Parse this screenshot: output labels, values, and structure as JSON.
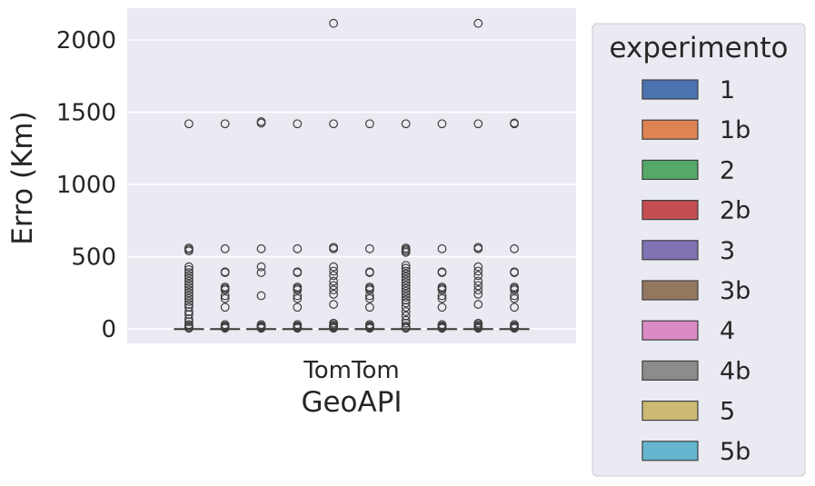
{
  "chart_data": {
    "type": "box",
    "xlabel": "GeoAPI",
    "ylabel": "Erro (Km)",
    "categories": [
      "TomTom"
    ],
    "ylim": [
      -100,
      2220
    ],
    "yticks": [
      0,
      500,
      1000,
      1500,
      2000
    ],
    "grid": true,
    "legend": {
      "title": "experimento",
      "placement": "outside-right"
    },
    "series": [
      {
        "name": "1",
        "color": "#4c72b0",
        "box": {
          "min": 0,
          "q1": 0,
          "median": 0,
          "q3": 0,
          "max": 0
        },
        "outliers": [
          1420,
          560,
          550,
          540,
          430,
          410,
          390,
          370,
          350,
          330,
          310,
          290,
          270,
          250,
          230,
          210,
          190,
          170,
          150,
          120,
          100,
          70,
          50,
          30,
          20,
          10,
          5
        ]
      },
      {
        "name": "1b",
        "color": "#dd8452",
        "box": {
          "min": 0,
          "q1": 0,
          "median": 0,
          "q3": 0,
          "max": 0
        },
        "outliers": [
          1420,
          555,
          395,
          390,
          290,
          280,
          270,
          230,
          210,
          150,
          30,
          20,
          15,
          10,
          5
        ]
      },
      {
        "name": "2",
        "color": "#55a868",
        "box": {
          "min": 0,
          "q1": 0,
          "median": 0,
          "q3": 0,
          "max": 0
        },
        "outliers": [
          1435,
          1425,
          555,
          430,
          390,
          230,
          30,
          20,
          15,
          10,
          5
        ]
      },
      {
        "name": "2b",
        "color": "#c44e52",
        "box": {
          "min": 0,
          "q1": 0,
          "median": 0,
          "q3": 0,
          "max": 0
        },
        "outliers": [
          1420,
          555,
          395,
          390,
          290,
          280,
          270,
          230,
          210,
          150,
          30,
          20,
          15,
          10,
          5
        ]
      },
      {
        "name": "3",
        "color": "#8172b3",
        "box": {
          "min": 0,
          "q1": 0,
          "median": 0,
          "q3": 0,
          "max": 0
        },
        "outliers": [
          2115,
          1420,
          565,
          555,
          430,
          400,
          370,
          330,
          300,
          270,
          240,
          170,
          40,
          30,
          20,
          15,
          10,
          5
        ]
      },
      {
        "name": "3b",
        "color": "#937860",
        "box": {
          "min": 0,
          "q1": 0,
          "median": 0,
          "q3": 0,
          "max": 0
        },
        "outliers": [
          1420,
          555,
          395,
          390,
          290,
          280,
          270,
          230,
          210,
          150,
          30,
          20,
          15,
          10,
          5
        ]
      },
      {
        "name": "4",
        "color": "#da8bc3",
        "box": {
          "min": 0,
          "q1": 0,
          "median": 0,
          "q3": 0,
          "max": 0
        },
        "outliers": [
          1420,
          560,
          550,
          540,
          530,
          440,
          420,
          400,
          380,
          360,
          340,
          320,
          300,
          280,
          260,
          240,
          220,
          200,
          180,
          150,
          120,
          90,
          60,
          40,
          20,
          10,
          5
        ]
      },
      {
        "name": "4b",
        "color": "#8c8c8c",
        "box": {
          "min": 0,
          "q1": 0,
          "median": 0,
          "q3": 0,
          "max": 0
        },
        "outliers": [
          1420,
          555,
          395,
          390,
          290,
          280,
          270,
          230,
          210,
          150,
          30,
          20,
          15,
          10,
          5
        ]
      },
      {
        "name": "5",
        "color": "#ccb974",
        "box": {
          "min": 0,
          "q1": 0,
          "median": 0,
          "q3": 0,
          "max": 0
        },
        "outliers": [
          2115,
          1420,
          565,
          555,
          430,
          400,
          370,
          330,
          300,
          270,
          240,
          170,
          40,
          30,
          20,
          15,
          10,
          5
        ]
      },
      {
        "name": "5b",
        "color": "#64b5cd",
        "box": {
          "min": 0,
          "q1": 0,
          "median": 0,
          "q3": 0,
          "max": 0
        },
        "outliers": [
          1425,
          1420,
          555,
          395,
          390,
          290,
          280,
          270,
          230,
          210,
          150,
          30,
          20,
          15,
          10,
          5
        ]
      }
    ]
  }
}
